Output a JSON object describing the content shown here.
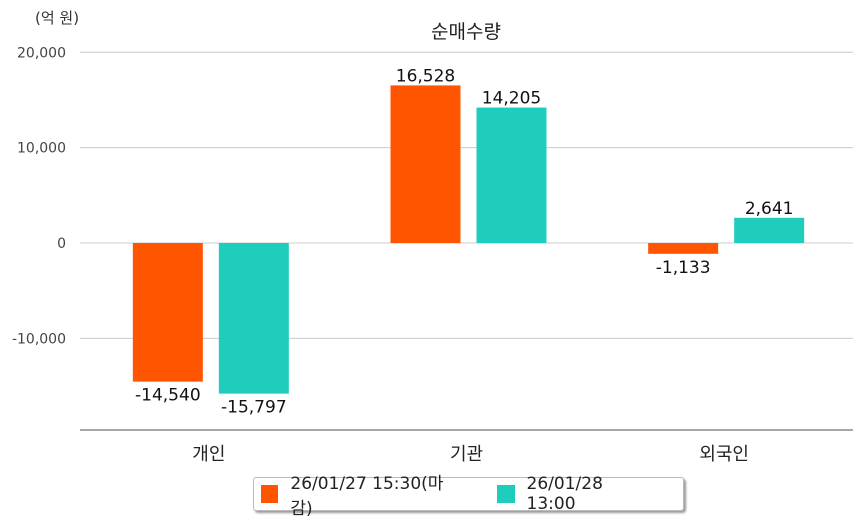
{
  "chart_data": {
    "type": "bar",
    "title": "순매수량",
    "unit_label": "(억 원)",
    "categories": [
      "개인",
      "기관",
      "외국인"
    ],
    "series": [
      {
        "name": "26/01/27 15:30(마감)",
        "color": "#ff5500",
        "values": [
          -14540,
          16528,
          -1133
        ],
        "labels": [
          "-14,540",
          "16,528",
          "-1,133"
        ]
      },
      {
        "name": "26/01/28 13:00",
        "color": "#1ecdbc",
        "values": [
          -15797,
          14205,
          2641
        ],
        "labels": [
          "-15,797",
          "14,205",
          "2,641"
        ]
      }
    ],
    "yticks": [
      20000,
      10000,
      0,
      -10000
    ],
    "ytick_labels": [
      "20,000",
      "10,000",
      "0",
      "-10,000"
    ],
    "ylim": [
      -19500,
      20000
    ],
    "grid": true,
    "legend_position": "bottom"
  }
}
